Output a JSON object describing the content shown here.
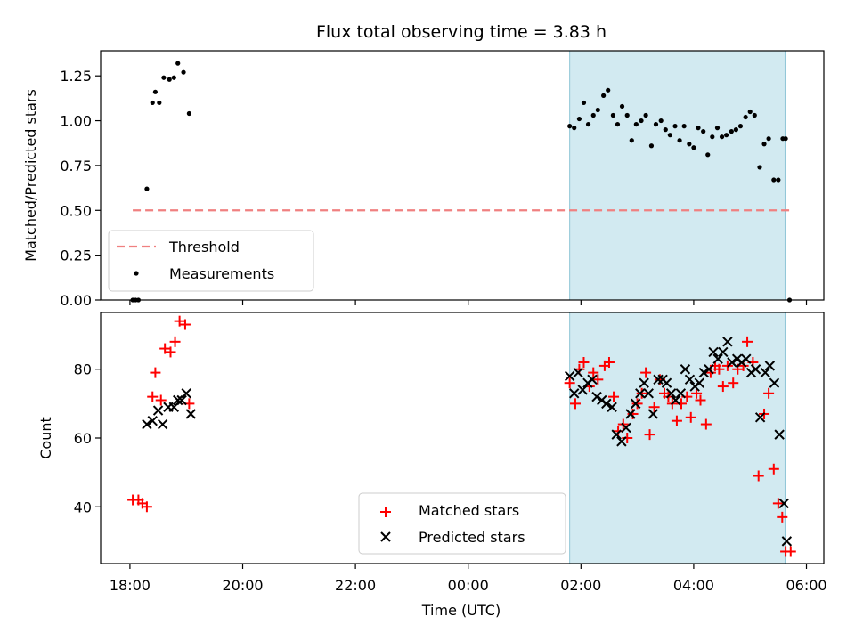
{
  "chart_data": [
    {
      "type": "scatter",
      "title": "Flux total observing time = 3.83 h",
      "ylabel": "Matched/Predicted stars",
      "ylim": [
        0,
        1.39
      ],
      "yticks": [
        "0.00",
        "0.25",
        "0.50",
        "0.75",
        "1.00",
        "1.25"
      ],
      "ytick_values": [
        0,
        0.25,
        0.5,
        0.75,
        1.0,
        1.25
      ],
      "shaded_region": {
        "x_start": 1.8,
        "x_end": 5.62,
        "color": "#add8e6"
      },
      "threshold": {
        "name": "Threshold",
        "y": 0.5,
        "x_start": 18.05,
        "x_end": 5.7,
        "color": "#f08080",
        "style": "dashed"
      },
      "legend": {
        "location": "lower left",
        "entries": [
          "Threshold",
          "Measurements"
        ]
      },
      "series": [
        {
          "name": "Measurements",
          "marker": "dot",
          "color": "#000000",
          "points": [
            [
              18.05,
              0.0
            ],
            [
              18.1,
              0.0
            ],
            [
              18.15,
              0.0
            ],
            [
              18.3,
              0.62
            ],
            [
              18.4,
              1.1
            ],
            [
              18.45,
              1.16
            ],
            [
              18.52,
              1.1
            ],
            [
              18.6,
              1.24
            ],
            [
              18.7,
              1.23
            ],
            [
              18.78,
              1.24
            ],
            [
              18.85,
              1.32
            ],
            [
              18.95,
              1.27
            ],
            [
              19.05,
              1.04
            ],
            [
              1.8,
              0.97
            ],
            [
              1.88,
              0.96
            ],
            [
              1.97,
              1.01
            ],
            [
              2.05,
              1.1
            ],
            [
              2.13,
              0.98
            ],
            [
              2.22,
              1.03
            ],
            [
              2.3,
              1.06
            ],
            [
              2.4,
              1.14
            ],
            [
              2.48,
              1.17
            ],
            [
              2.57,
              1.03
            ],
            [
              2.65,
              0.98
            ],
            [
              2.73,
              1.08
            ],
            [
              2.82,
              1.03
            ],
            [
              2.9,
              0.89
            ],
            [
              2.98,
              0.98
            ],
            [
              3.07,
              1.0
            ],
            [
              3.15,
              1.03
            ],
            [
              3.25,
              0.86
            ],
            [
              3.33,
              0.98
            ],
            [
              3.42,
              1.0
            ],
            [
              3.5,
              0.95
            ],
            [
              3.58,
              0.92
            ],
            [
              3.67,
              0.97
            ],
            [
              3.75,
              0.89
            ],
            [
              3.83,
              0.97
            ],
            [
              3.92,
              0.87
            ],
            [
              4.0,
              0.85
            ],
            [
              4.08,
              0.96
            ],
            [
              4.17,
              0.94
            ],
            [
              4.25,
              0.81
            ],
            [
              4.33,
              0.91
            ],
            [
              4.42,
              0.96
            ],
            [
              4.5,
              0.91
            ],
            [
              4.58,
              0.92
            ],
            [
              4.67,
              0.94
            ],
            [
              4.75,
              0.95
            ],
            [
              4.83,
              0.97
            ],
            [
              4.92,
              1.02
            ],
            [
              5.0,
              1.05
            ],
            [
              5.08,
              1.03
            ],
            [
              5.17,
              0.74
            ],
            [
              5.25,
              0.87
            ],
            [
              5.33,
              0.9
            ],
            [
              5.42,
              0.67
            ],
            [
              5.5,
              0.67
            ],
            [
              5.58,
              0.9
            ],
            [
              5.63,
              0.9
            ],
            [
              5.7,
              0.0
            ]
          ]
        }
      ]
    },
    {
      "type": "scatter",
      "xlabel": "Time (UTC)",
      "ylabel": "Count",
      "ylim": [
        23.5,
        96.5
      ],
      "yticks": [
        "40",
        "60",
        "80"
      ],
      "ytick_values": [
        40,
        60,
        80
      ],
      "xticks": [
        "18:00",
        "20:00",
        "22:00",
        "00:00",
        "02:00",
        "04:00",
        "06:00"
      ],
      "shaded_region": {
        "x_start": 1.8,
        "x_end": 5.62,
        "color": "#add8e6"
      },
      "legend": {
        "location": "lower center",
        "entries": [
          "Matched stars",
          "Predicted stars"
        ]
      },
      "series": [
        {
          "name": "Matched stars",
          "marker": "plus",
          "color": "#ff0000",
          "points": [
            [
              18.05,
              42
            ],
            [
              18.15,
              42
            ],
            [
              18.22,
              41
            ],
            [
              18.3,
              40
            ],
            [
              18.4,
              72
            ],
            [
              18.45,
              79
            ],
            [
              18.55,
              71
            ],
            [
              18.62,
              86
            ],
            [
              18.72,
              85
            ],
            [
              18.8,
              88
            ],
            [
              18.88,
              94
            ],
            [
              18.98,
              93
            ],
            [
              19.05,
              70
            ],
            [
              1.8,
              76
            ],
            [
              1.9,
              70
            ],
            [
              1.97,
              80
            ],
            [
              2.05,
              82
            ],
            [
              2.15,
              75
            ],
            [
              2.22,
              79
            ],
            [
              2.3,
              77
            ],
            [
              2.42,
              81
            ],
            [
              2.5,
              82
            ],
            [
              2.58,
              72
            ],
            [
              2.66,
              62
            ],
            [
              2.75,
              64
            ],
            [
              2.82,
              60
            ],
            [
              2.92,
              67
            ],
            [
              3.0,
              70
            ],
            [
              3.08,
              73
            ],
            [
              3.15,
              79
            ],
            [
              3.22,
              61
            ],
            [
              3.3,
              69
            ],
            [
              3.4,
              77
            ],
            [
              3.48,
              73
            ],
            [
              3.55,
              72
            ],
            [
              3.62,
              70
            ],
            [
              3.7,
              65
            ],
            [
              3.78,
              70
            ],
            [
              3.88,
              72
            ],
            [
              3.95,
              66
            ],
            [
              4.05,
              73
            ],
            [
              4.12,
              71
            ],
            [
              4.22,
              64
            ],
            [
              4.3,
              79
            ],
            [
              4.38,
              81
            ],
            [
              4.45,
              80
            ],
            [
              4.52,
              75
            ],
            [
              4.6,
              81
            ],
            [
              4.7,
              76
            ],
            [
              4.78,
              80
            ],
            [
              4.88,
              81
            ],
            [
              4.95,
              88
            ],
            [
              5.05,
              82
            ],
            [
              5.15,
              49
            ],
            [
              5.25,
              67
            ],
            [
              5.33,
              73
            ],
            [
              5.42,
              51
            ],
            [
              5.5,
              41
            ],
            [
              5.57,
              37
            ],
            [
              5.63,
              27
            ],
            [
              5.72,
              27
            ]
          ]
        },
        {
          "name": "Predicted stars",
          "marker": "x",
          "color": "#000000",
          "points": [
            [
              18.3,
              64
            ],
            [
              18.4,
              65
            ],
            [
              18.5,
              68
            ],
            [
              18.58,
              64
            ],
            [
              18.68,
              69
            ],
            [
              18.78,
              69
            ],
            [
              18.85,
              71
            ],
            [
              18.92,
              71
            ],
            [
              19.0,
              73
            ],
            [
              19.08,
              67
            ],
            [
              1.8,
              78
            ],
            [
              1.88,
              73
            ],
            [
              1.95,
              79
            ],
            [
              2.03,
              74
            ],
            [
              2.12,
              76
            ],
            [
              2.2,
              77
            ],
            [
              2.28,
              72
            ],
            [
              2.37,
              71
            ],
            [
              2.45,
              70
            ],
            [
              2.55,
              69
            ],
            [
              2.63,
              61
            ],
            [
              2.72,
              59
            ],
            [
              2.8,
              63
            ],
            [
              2.88,
              67
            ],
            [
              2.97,
              70
            ],
            [
              3.05,
              73
            ],
            [
              3.12,
              76
            ],
            [
              3.2,
              73
            ],
            [
              3.28,
              67
            ],
            [
              3.37,
              77
            ],
            [
              3.45,
              77
            ],
            [
              3.52,
              76
            ],
            [
              3.6,
              73
            ],
            [
              3.68,
              71
            ],
            [
              3.77,
              73
            ],
            [
              3.85,
              80
            ],
            [
              3.93,
              77
            ],
            [
              4.02,
              75
            ],
            [
              4.1,
              76
            ],
            [
              4.18,
              79
            ],
            [
              4.27,
              80
            ],
            [
              4.35,
              85
            ],
            [
              4.43,
              83
            ],
            [
              4.52,
              85
            ],
            [
              4.6,
              88
            ],
            [
              4.68,
              82
            ],
            [
              4.77,
              83
            ],
            [
              4.85,
              82
            ],
            [
              4.93,
              83
            ],
            [
              5.02,
              79
            ],
            [
              5.1,
              80
            ],
            [
              5.18,
              66
            ],
            [
              5.27,
              79
            ],
            [
              5.35,
              81
            ],
            [
              5.43,
              76
            ],
            [
              5.52,
              61
            ],
            [
              5.6,
              41
            ],
            [
              5.65,
              30
            ]
          ]
        }
      ]
    }
  ]
}
